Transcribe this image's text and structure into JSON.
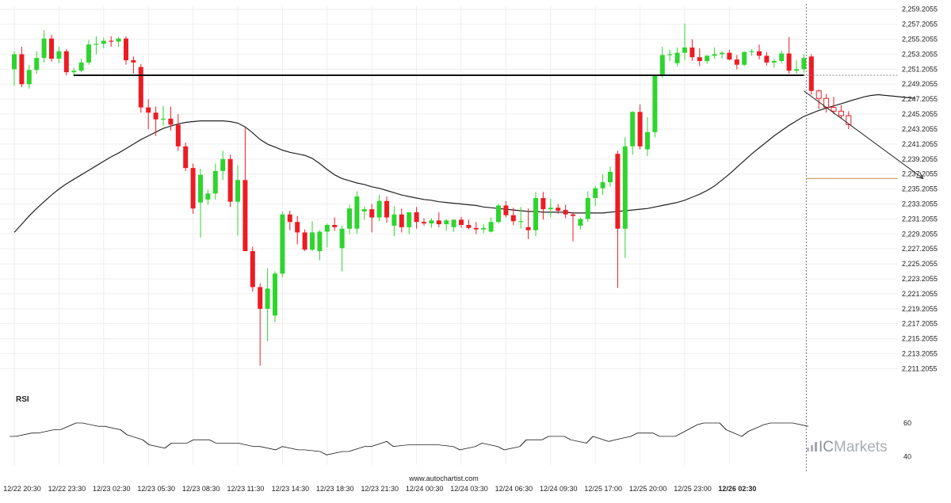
{
  "chart_data": {
    "type": "candlestick",
    "price_axis": {
      "ticks": [
        "2,259.2055",
        "2,257.2055",
        "2,255.2055",
        "2,253.2055",
        "2,251.2055",
        "2,249.2055",
        "2,247.2055",
        "2,245.2055",
        "2,243.2055",
        "2,241.2055",
        "2,239.2055",
        "2,237.2055",
        "2,235.2055",
        "2,233.2055",
        "2,231.2055",
        "2,229.2055",
        "2,227.2055",
        "2,225.2055",
        "2,223.2055",
        "2,221.2055",
        "2,219.2055",
        "2,217.2055",
        "2,215.2055",
        "2,213.2055",
        "2,211.2055"
      ],
      "range": [
        2210.4,
        2259.6
      ]
    },
    "time_axis": {
      "ticks": [
        {
          "label": "12/22 20:30",
          "index": 0
        },
        {
          "label": "12/22 23:30",
          "index": 6
        },
        {
          "label": "12/23 02:30",
          "index": 12
        },
        {
          "label": "12/23 05:30",
          "index": 18
        },
        {
          "label": "12/23 08:30",
          "index": 24
        },
        {
          "label": "12/23 11:30",
          "index": 30
        },
        {
          "label": "12/23 14:30",
          "index": 36
        },
        {
          "label": "12/23 18:30",
          "index": 42
        },
        {
          "label": "12/23 21:30",
          "index": 48
        },
        {
          "label": "12/24 00:30",
          "index": 54
        },
        {
          "label": "12/24 03:30",
          "index": 60
        },
        {
          "label": "12/24 06:30",
          "index": 66
        },
        {
          "label": "12/24 09:30",
          "index": 72
        },
        {
          "label": "12/25 17:00",
          "index": 78
        },
        {
          "label": "12/25 20:00",
          "index": 84
        },
        {
          "label": "12/25 23:00",
          "index": 90
        },
        {
          "label": "12/26 02:30",
          "index": 96,
          "bold": true
        }
      ]
    },
    "candles": [
      {
        "o": 2251.2,
        "h": 2253.6,
        "l": 2249.0,
        "c": 2253.2
      },
      {
        "o": 2253.2,
        "h": 2254.2,
        "l": 2248.8,
        "c": 2249.2
      },
      {
        "o": 2249.2,
        "h": 2251.8,
        "l": 2248.6,
        "c": 2251.1
      },
      {
        "o": 2251.1,
        "h": 2253.6,
        "l": 2250.6,
        "c": 2252.7
      },
      {
        "o": 2252.7,
        "h": 2256.4,
        "l": 2252.1,
        "c": 2255.3
      },
      {
        "o": 2255.3,
        "h": 2255.8,
        "l": 2252.2,
        "c": 2252.6
      },
      {
        "o": 2252.6,
        "h": 2254.2,
        "l": 2252.0,
        "c": 2253.6
      },
      {
        "o": 2253.6,
        "h": 2253.9,
        "l": 2250.4,
        "c": 2250.8
      },
      {
        "o": 2250.8,
        "h": 2251.4,
        "l": 2250.2,
        "c": 2251.0
      },
      {
        "o": 2251.0,
        "h": 2252.6,
        "l": 2250.8,
        "c": 2252.1
      },
      {
        "o": 2252.1,
        "h": 2255.1,
        "l": 2251.8,
        "c": 2254.5
      },
      {
        "o": 2254.5,
        "h": 2255.6,
        "l": 2253.2,
        "c": 2254.6
      },
      {
        "o": 2254.6,
        "h": 2255.4,
        "l": 2254.0,
        "c": 2255.0
      },
      {
        "o": 2255.0,
        "h": 2255.6,
        "l": 2254.2,
        "c": 2254.9
      },
      {
        "o": 2254.9,
        "h": 2255.5,
        "l": 2254.2,
        "c": 2255.3
      },
      {
        "o": 2255.3,
        "h": 2255.6,
        "l": 2251.8,
        "c": 2252.4
      },
      {
        "o": 2252.4,
        "h": 2252.9,
        "l": 2250.6,
        "c": 2252.1
      },
      {
        "o": 2251.5,
        "h": 2251.9,
        "l": 2245.4,
        "c": 2246.1
      },
      {
        "o": 2246.1,
        "h": 2247.2,
        "l": 2243.2,
        "c": 2245.4
      },
      {
        "o": 2245.4,
        "h": 2246.2,
        "l": 2242.3,
        "c": 2244.5
      },
      {
        "o": 2244.5,
        "h": 2246.3,
        "l": 2243.6,
        "c": 2244.6
      },
      {
        "o": 2244.6,
        "h": 2246.2,
        "l": 2243.0,
        "c": 2243.8
      },
      {
        "o": 2243.8,
        "h": 2245.2,
        "l": 2240.3,
        "c": 2240.9
      },
      {
        "o": 2240.9,
        "h": 2241.4,
        "l": 2237.6,
        "c": 2238.0
      },
      {
        "o": 2238.0,
        "h": 2238.6,
        "l": 2231.9,
        "c": 2232.6
      },
      {
        "o": 2233.4,
        "h": 2237.9,
        "l": 2228.7,
        "c": 2237.1
      },
      {
        "o": 2233.8,
        "h": 2235.1,
        "l": 2233.1,
        "c": 2234.6
      },
      {
        "o": 2234.6,
        "h": 2238.6,
        "l": 2233.8,
        "c": 2237.6
      },
      {
        "o": 2237.6,
        "h": 2240.3,
        "l": 2236.4,
        "c": 2239.2
      },
      {
        "o": 2239.2,
        "h": 2239.8,
        "l": 2232.8,
        "c": 2233.5
      },
      {
        "o": 2233.5,
        "h": 2238.4,
        "l": 2229.0,
        "c": 2236.4
      },
      {
        "o": 2236.4,
        "h": 2243.4,
        "l": 2226.9,
        "c": 2226.9
      },
      {
        "o": 2226.9,
        "h": 2227.5,
        "l": 2221.5,
        "c": 2222.1
      },
      {
        "o": 2222.1,
        "h": 2222.6,
        "l": 2211.6,
        "c": 2219.2
      },
      {
        "o": 2219.2,
        "h": 2224.6,
        "l": 2214.9,
        "c": 2221.9
      },
      {
        "o": 2218.3,
        "h": 2224.2,
        "l": 2217.4,
        "c": 2223.9
      },
      {
        "o": 2223.9,
        "h": 2232.2,
        "l": 2223.4,
        "c": 2231.8
      },
      {
        "o": 2231.8,
        "h": 2232.3,
        "l": 2229.7,
        "c": 2230.8
      },
      {
        "o": 2230.8,
        "h": 2231.6,
        "l": 2227.8,
        "c": 2229.4
      },
      {
        "o": 2229.4,
        "h": 2229.8,
        "l": 2226.9,
        "c": 2227.1
      },
      {
        "o": 2227.1,
        "h": 2230.9,
        "l": 2226.9,
        "c": 2229.4
      },
      {
        "o": 2226.9,
        "h": 2229.7,
        "l": 2225.7,
        "c": 2229.5
      },
      {
        "o": 2229.5,
        "h": 2230.6,
        "l": 2227.4,
        "c": 2230.4
      },
      {
        "o": 2230.4,
        "h": 2231.4,
        "l": 2229.6,
        "c": 2230.1
      },
      {
        "o": 2227.3,
        "h": 2230.3,
        "l": 2224.2,
        "c": 2229.9
      },
      {
        "o": 2229.9,
        "h": 2233.1,
        "l": 2229.2,
        "c": 2232.6
      },
      {
        "o": 2229.9,
        "h": 2234.9,
        "l": 2229.2,
        "c": 2234.2
      },
      {
        "o": 2232.2,
        "h": 2232.9,
        "l": 2231.1,
        "c": 2232.5
      },
      {
        "o": 2232.5,
        "h": 2233.2,
        "l": 2229.4,
        "c": 2231.4
      },
      {
        "o": 2231.4,
        "h": 2234.4,
        "l": 2230.9,
        "c": 2233.6
      },
      {
        "o": 2233.6,
        "h": 2234.2,
        "l": 2230.7,
        "c": 2231.4
      },
      {
        "o": 2230.3,
        "h": 2232.9,
        "l": 2228.9,
        "c": 2231.8
      },
      {
        "o": 2231.8,
        "h": 2232.6,
        "l": 2229.4,
        "c": 2230.1
      },
      {
        "o": 2230.1,
        "h": 2232.1,
        "l": 2229.2,
        "c": 2232.1
      },
      {
        "o": 2232.1,
        "h": 2232.8,
        "l": 2229.9,
        "c": 2230.8
      },
      {
        "o": 2230.8,
        "h": 2231.3,
        "l": 2230.3,
        "c": 2230.6
      },
      {
        "o": 2230.6,
        "h": 2231.3,
        "l": 2230.0,
        "c": 2231.0
      },
      {
        "o": 2231.0,
        "h": 2232.1,
        "l": 2230.1,
        "c": 2230.5
      },
      {
        "o": 2230.5,
        "h": 2231.2,
        "l": 2229.6,
        "c": 2231.0
      },
      {
        "o": 2230.1,
        "h": 2231.0,
        "l": 2229.5,
        "c": 2231.1
      },
      {
        "o": 2231.1,
        "h": 2231.5,
        "l": 2230.0,
        "c": 2230.4
      },
      {
        "o": 2230.4,
        "h": 2231.1,
        "l": 2229.8,
        "c": 2230.0
      },
      {
        "o": 2230.0,
        "h": 2230.8,
        "l": 2229.2,
        "c": 2229.8
      },
      {
        "o": 2229.8,
        "h": 2230.5,
        "l": 2229.3,
        "c": 2230.0
      },
      {
        "o": 2229.5,
        "h": 2231.4,
        "l": 2229.4,
        "c": 2230.8
      },
      {
        "o": 2230.8,
        "h": 2233.2,
        "l": 2230.6,
        "c": 2233.0
      },
      {
        "o": 2233.0,
        "h": 2233.6,
        "l": 2231.4,
        "c": 2231.7
      },
      {
        "o": 2231.7,
        "h": 2232.7,
        "l": 2230.4,
        "c": 2230.9
      },
      {
        "o": 2230.9,
        "h": 2232.8,
        "l": 2229.9,
        "c": 2230.9
      },
      {
        "o": 2230.1,
        "h": 2232.6,
        "l": 2228.5,
        "c": 2229.7
      },
      {
        "o": 2229.7,
        "h": 2234.8,
        "l": 2228.9,
        "c": 2234.0
      },
      {
        "o": 2234.0,
        "h": 2234.8,
        "l": 2231.1,
        "c": 2232.5
      },
      {
        "o": 2232.5,
        "h": 2233.9,
        "l": 2231.4,
        "c": 2232.7
      },
      {
        "o": 2232.7,
        "h": 2233.2,
        "l": 2231.9,
        "c": 2232.3
      },
      {
        "o": 2232.4,
        "h": 2233.1,
        "l": 2231.3,
        "c": 2231.8
      },
      {
        "o": 2231.8,
        "h": 2232.1,
        "l": 2228.2,
        "c": 2231.6
      },
      {
        "o": 2230.3,
        "h": 2231.4,
        "l": 2229.8,
        "c": 2231.2
      },
      {
        "o": 2231.2,
        "h": 2234.9,
        "l": 2230.8,
        "c": 2234.0
      },
      {
        "o": 2234.0,
        "h": 2235.6,
        "l": 2232.9,
        "c": 2235.3
      },
      {
        "o": 2235.3,
        "h": 2237.2,
        "l": 2234.4,
        "c": 2236.1
      },
      {
        "o": 2236.1,
        "h": 2238.2,
        "l": 2235.5,
        "c": 2237.5
      },
      {
        "o": 2239.9,
        "h": 2240.3,
        "l": 2222.0,
        "c": 2229.9
      },
      {
        "o": 2229.9,
        "h": 2242.1,
        "l": 2226.0,
        "c": 2240.9
      },
      {
        "o": 2240.9,
        "h": 2245.6,
        "l": 2239.8,
        "c": 2245.5
      },
      {
        "o": 2245.5,
        "h": 2246.5,
        "l": 2240.5,
        "c": 2240.9
      },
      {
        "o": 2240.5,
        "h": 2244.8,
        "l": 2239.6,
        "c": 2242.8
      },
      {
        "o": 2242.8,
        "h": 2250.5,
        "l": 2242.1,
        "c": 2250.5
      },
      {
        "o": 2250.5,
        "h": 2254.2,
        "l": 2250.1,
        "c": 2253.1
      },
      {
        "o": 2253.1,
        "h": 2253.8,
        "l": 2252.3,
        "c": 2253.2
      },
      {
        "o": 2252.0,
        "h": 2254.1,
        "l": 2251.6,
        "c": 2253.4
      },
      {
        "o": 2253.4,
        "h": 2257.3,
        "l": 2252.4,
        "c": 2254.1
      },
      {
        "o": 2254.1,
        "h": 2255.2,
        "l": 2252.3,
        "c": 2252.8
      },
      {
        "o": 2252.8,
        "h": 2254.0,
        "l": 2251.6,
        "c": 2252.3
      },
      {
        "o": 2252.3,
        "h": 2253.1,
        "l": 2251.9,
        "c": 2253.0
      },
      {
        "o": 2253.0,
        "h": 2254.1,
        "l": 2252.6,
        "c": 2253.2
      },
      {
        "o": 2253.2,
        "h": 2253.6,
        "l": 2252.6,
        "c": 2253.4
      },
      {
        "o": 2253.4,
        "h": 2253.8,
        "l": 2252.4,
        "c": 2252.5
      },
      {
        "o": 2252.5,
        "h": 2253.1,
        "l": 2251.2,
        "c": 2251.8
      },
      {
        "o": 2251.8,
        "h": 2253.6,
        "l": 2251.6,
        "c": 2253.5
      },
      {
        "o": 2253.5,
        "h": 2253.9,
        "l": 2253.0,
        "c": 2253.6
      },
      {
        "o": 2253.6,
        "h": 2254.5,
        "l": 2252.5,
        "c": 2253.0
      },
      {
        "o": 2253.0,
        "h": 2253.5,
        "l": 2251.7,
        "c": 2252.1
      },
      {
        "o": 2252.1,
        "h": 2252.6,
        "l": 2251.4,
        "c": 2252.3
      },
      {
        "o": 2252.3,
        "h": 2253.7,
        "l": 2252.0,
        "c": 2253.3
      },
      {
        "o": 2253.3,
        "h": 2255.5,
        "l": 2250.6,
        "c": 2251.0
      },
      {
        "o": 2251.0,
        "h": 2252.4,
        "l": 2250.6,
        "c": 2251.2
      },
      {
        "o": 2251.2,
        "h": 2253.2,
        "l": 2250.7,
        "c": 2252.7
      },
      {
        "o": 2252.9,
        "h": 2253.2,
        "l": 2247.8,
        "c": 2248.3
      },
      {
        "o": 2248.3,
        "h": 2248.5,
        "l": 2245.9,
        "c": 2247.3,
        "hollow": true
      },
      {
        "o": 2247.3,
        "h": 2247.9,
        "l": 2245.4,
        "c": 2246.1,
        "hollow": true
      },
      {
        "o": 2246.1,
        "h": 2247.5,
        "l": 2245.2,
        "c": 2245.6,
        "hollow": true
      },
      {
        "o": 2245.6,
        "h": 2246.4,
        "l": 2244.6,
        "c": 2245.0,
        "hollow": true
      },
      {
        "o": 2245.0,
        "h": 2245.6,
        "l": 2243.2,
        "c": 2243.8,
        "hollow": true
      }
    ],
    "moving_average": [
      2229.4,
      2230.5,
      2231.6,
      2232.6,
      2233.5,
      2234.4,
      2235.2,
      2235.9,
      2236.5,
      2237.1,
      2237.7,
      2238.3,
      2238.9,
      2239.5,
      2240.0,
      2240.6,
      2241.2,
      2241.8,
      2242.3,
      2242.8,
      2243.3,
      2243.6,
      2243.9,
      2244.1,
      2244.2,
      2244.3,
      2244.3,
      2244.3,
      2244.3,
      2244.2,
      2244.0,
      2243.5,
      2242.7,
      2241.8,
      2241.2,
      2240.8,
      2240.4,
      2240.1,
      2239.9,
      2239.7,
      2239.3,
      2238.6,
      2237.8,
      2237.1,
      2236.6,
      2236.3,
      2236.0,
      2235.8,
      2235.5,
      2235.3,
      2235.0,
      2234.7,
      2234.4,
      2234.2,
      2234.0,
      2233.8,
      2233.7,
      2233.5,
      2233.4,
      2233.3,
      2233.2,
      2233.1,
      2233.0,
      2232.8,
      2232.7,
      2232.6,
      2232.5,
      2232.4,
      2232.3,
      2232.2,
      2232.2,
      2232.1,
      2232.1,
      2232.1,
      2232.1,
      2232.0,
      2232.0,
      2232.0,
      2232.0,
      2232.0,
      2232.1,
      2232.2,
      2232.3,
      2232.4,
      2232.5,
      2232.6,
      2232.8,
      2233.0,
      2233.2,
      2233.4,
      2233.7,
      2234.1,
      2234.5,
      2235.0,
      2235.6,
      2236.4,
      2237.2,
      2238.1,
      2239.0,
      2239.9,
      2240.7,
      2241.5,
      2242.3,
      2243.0,
      2243.7,
      2244.3,
      2244.9,
      2245.3,
      2245.7,
      2246.0,
      2246.3,
      2246.6,
      2246.9,
      2247.2,
      2247.5,
      2247.7,
      2247.8,
      2247.7,
      2247.6,
      2247.5,
      2247.4,
      2247.3
    ],
    "rsi": {
      "title": "RSI",
      "ticks": [
        60,
        40
      ],
      "range": [
        35,
        68
      ],
      "values": [
        52,
        52,
        54,
        54,
        56,
        56,
        60,
        60,
        58,
        58,
        56,
        53,
        50,
        47,
        45,
        48,
        48,
        50,
        50,
        48,
        48,
        48,
        46,
        46,
        44,
        46,
        44,
        44,
        43,
        41,
        43,
        43,
        46,
        46,
        49,
        46,
        47,
        47,
        47,
        47,
        46,
        44,
        46,
        48,
        46,
        44,
        46,
        50,
        50,
        52,
        52,
        50,
        48,
        52,
        49,
        50,
        52,
        54,
        54,
        52,
        52,
        54,
        59,
        60,
        60,
        56,
        52,
        55,
        59,
        60,
        60,
        60,
        58
      ],
      "last_index_extra": true
    },
    "annotations": {
      "resistance_level": {
        "price": 2250.4,
        "from_index": 8,
        "to_index": 106
      },
      "forecast": {
        "from_index": 106,
        "from_price": 2248.3,
        "to_index": 122,
        "to_price": 2236.6
      },
      "target_level": {
        "price": 2236.6
      },
      "current_time_index": 106
    },
    "colors": {
      "bull": "#2ed52e",
      "bear": "#ec1c24",
      "resistance": "#111111",
      "target": "#d3a46a",
      "moving_average": "#222222",
      "rsi_line": "#222222",
      "grid": "#eeeeee"
    },
    "source": "www.autochartist.com",
    "branding": {
      "prefix": "IC",
      "suffix": "Markets"
    }
  }
}
